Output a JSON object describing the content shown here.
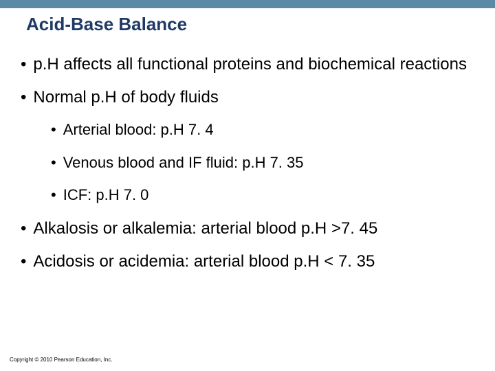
{
  "colors": {
    "top_bar": "#5b8aa6",
    "title": "#1f3a66",
    "body_text": "#000000",
    "copyright": "#000000",
    "background": "#ffffff"
  },
  "fonts": {
    "title_size": 26,
    "body_size": 24,
    "sub_size": 22,
    "copyright_size": 8
  },
  "title": "Acid-Base Balance",
  "bullets": [
    {
      "level": 1,
      "text": "p.H affects all functional proteins and biochemical reactions"
    },
    {
      "level": 1,
      "text": "Normal p.H of body fluids"
    },
    {
      "level": 2,
      "text": "Arterial blood: p.H 7. 4"
    },
    {
      "level": 2,
      "text": "Venous blood and IF fluid: p.H 7. 35"
    },
    {
      "level": 2,
      "text": "ICF: p.H 7. 0"
    },
    {
      "level": 1,
      "text": "Alkalosis or alkalemia: arterial blood p.H >7. 45"
    },
    {
      "level": 1,
      "text": "Acidosis or acidemia: arterial blood p.H < 7. 35"
    }
  ],
  "copyright": "Copyright © 2010 Pearson Education, Inc."
}
